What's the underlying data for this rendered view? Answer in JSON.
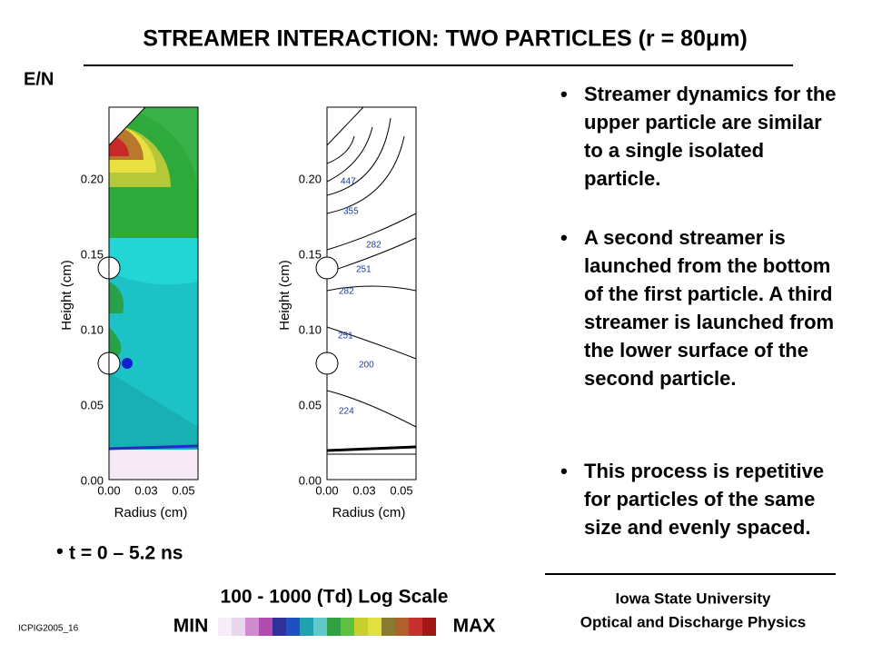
{
  "header": {
    "title": "STREAMER INTERACTION:  TWO PARTICLES (r = 80μm)"
  },
  "left_label": "E/N",
  "plots": [
    {
      "y_axis_label": "Height (cm)",
      "x_axis_label": "Radius (cm)",
      "yticks": [
        "0.00",
        "0.05",
        "0.10",
        "0.15",
        "0.20"
      ],
      "xticks": [
        "0.00",
        "0.03",
        "0.05"
      ]
    },
    {
      "y_axis_label": "Height (cm)",
      "x_axis_label": "Radius (cm)",
      "yticks": [
        "0.00",
        "0.05",
        "0.10",
        "0.15",
        "0.20"
      ],
      "xticks": [
        "0.00",
        "0.03",
        "0.05"
      ],
      "contour_labels": [
        "447",
        "355",
        "282",
        "251",
        "282",
        "251",
        "200",
        "224"
      ]
    }
  ],
  "time_note": "t = 0 – 5.2 ns",
  "scale": {
    "title": "100 - 1000 (Td) Log Scale",
    "min": "MIN",
    "max": "MAX"
  },
  "bullets": [
    "Streamer dynamics for the upper particle are similar to a single isolated particle.",
    "A second streamer is launched from the bottom of the first particle.  A third streamer is launched from the lower surface of the second particle.",
    "This process is repetitive for particles of the same size and evenly spaced."
  ],
  "footer": {
    "id": "ICPIG2005_16",
    "org1": "Iowa State University",
    "org2": "Optical and Discharge Physics"
  }
}
